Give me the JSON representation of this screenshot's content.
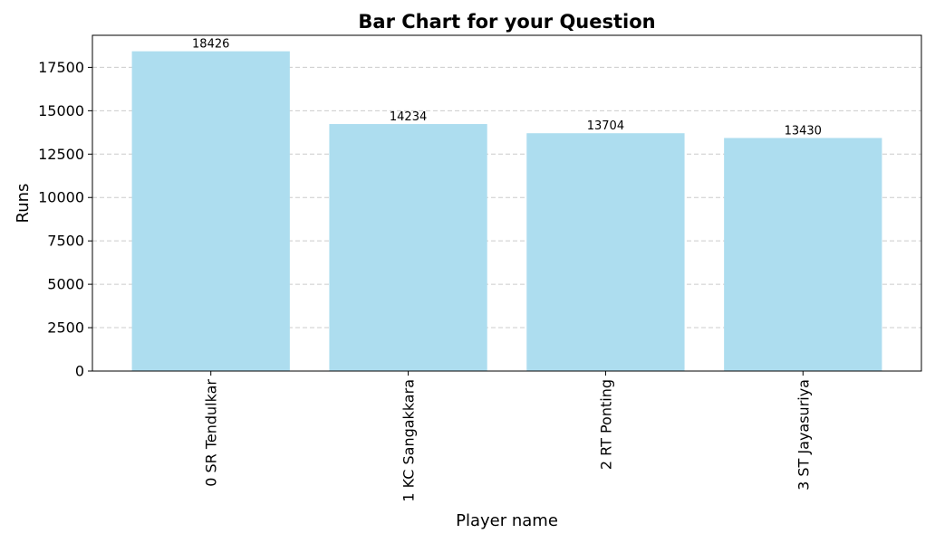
{
  "chart_data": {
    "type": "bar",
    "title": "Bar Chart for your Question",
    "xlabel": "Player name",
    "ylabel": "Runs",
    "categories": [
      "0 SR Tendulkar",
      "1 KC Sangakkara",
      "2 RT Ponting",
      "3 ST Jayasuriya"
    ],
    "values": [
      18426,
      14234,
      13704,
      13430
    ],
    "yticks": [
      0,
      2500,
      5000,
      7500,
      10000,
      12500,
      15000,
      17500
    ],
    "ylim": [
      0,
      19347
    ],
    "grid": "y-dashed",
    "bar_color": "#ADDDEF",
    "grid_color": "#cccccc",
    "data_labels": true
  }
}
